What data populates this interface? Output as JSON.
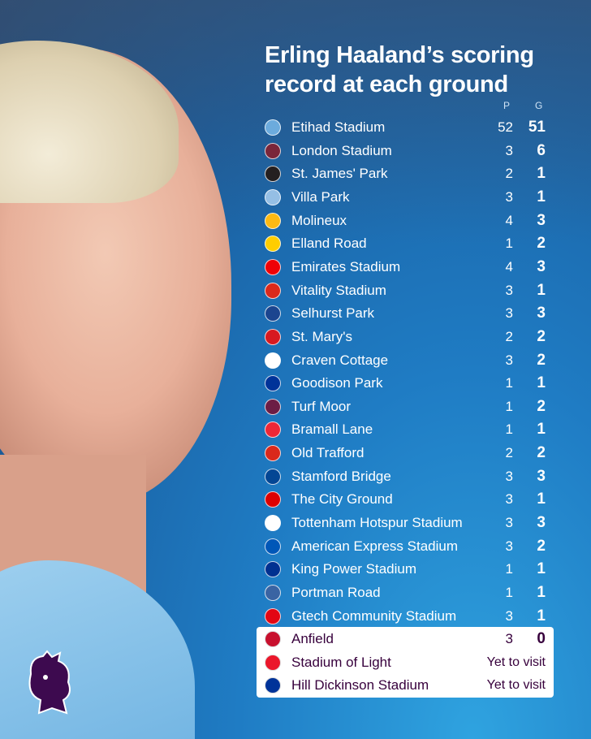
{
  "title": [
    "Erling Haaland’s scoring",
    "record at each ground"
  ],
  "columns": {
    "played": "P",
    "goals": "G"
  },
  "grounds": [
    {
      "name": "Etihad Stadium",
      "p": "52",
      "g": "51",
      "badge": "man-city-badge",
      "color": "#6cabdd"
    },
    {
      "name": "London Stadium",
      "p": "3",
      "g": "6",
      "badge": "west-ham-badge",
      "color": "#7a263a"
    },
    {
      "name": "St. James' Park",
      "p": "2",
      "g": "1",
      "badge": "newcastle-badge",
      "color": "#241f20"
    },
    {
      "name": "Villa Park",
      "p": "3",
      "g": "1",
      "badge": "aston-villa-badge",
      "color": "#95bfe5"
    },
    {
      "name": "Molineux",
      "p": "4",
      "g": "3",
      "badge": "wolves-badge",
      "color": "#fdb913"
    },
    {
      "name": "Elland Road",
      "p": "1",
      "g": "2",
      "badge": "leeds-badge",
      "color": "#ffcd00"
    },
    {
      "name": "Emirates Stadium",
      "p": "4",
      "g": "3",
      "badge": "arsenal-badge",
      "color": "#ef0107"
    },
    {
      "name": "Vitality Stadium",
      "p": "3",
      "g": "1",
      "badge": "bournemouth-badge",
      "color": "#da291c"
    },
    {
      "name": "Selhurst Park",
      "p": "3",
      "g": "3",
      "badge": "crystal-palace-badge",
      "color": "#1b458f"
    },
    {
      "name": "St. Mary's",
      "p": "2",
      "g": "2",
      "badge": "southampton-badge",
      "color": "#d71920"
    },
    {
      "name": "Craven Cottage",
      "p": "3",
      "g": "2",
      "badge": "fulham-badge",
      "color": "#ffffff"
    },
    {
      "name": "Goodison Park",
      "p": "1",
      "g": "1",
      "badge": "everton-badge",
      "color": "#003399"
    },
    {
      "name": "Turf Moor",
      "p": "1",
      "g": "2",
      "badge": "burnley-badge",
      "color": "#6c1d45"
    },
    {
      "name": "Bramall Lane",
      "p": "1",
      "g": "1",
      "badge": "sheffield-united-badge",
      "color": "#ee2737"
    },
    {
      "name": "Old Trafford",
      "p": "2",
      "g": "2",
      "badge": "man-utd-badge",
      "color": "#da291c"
    },
    {
      "name": "Stamford Bridge",
      "p": "3",
      "g": "3",
      "badge": "chelsea-badge",
      "color": "#034694"
    },
    {
      "name": "The City Ground",
      "p": "3",
      "g": "1",
      "badge": "nottingham-forest-badge",
      "color": "#dd0000"
    },
    {
      "name": "Tottenham Hotspur Stadium",
      "p": "3",
      "g": "3",
      "badge": "tottenham-badge",
      "color": "#ffffff"
    },
    {
      "name": "American Express Stadium",
      "p": "3",
      "g": "2",
      "badge": "brighton-badge",
      "color": "#0057b8"
    },
    {
      "name": "King Power Stadium",
      "p": "1",
      "g": "1",
      "badge": "leicester-badge",
      "color": "#003090"
    },
    {
      "name": "Portman Road",
      "p": "1",
      "g": "1",
      "badge": "ipswich-badge",
      "color": "#3a64a3"
    },
    {
      "name": "Gtech Community Stadium",
      "p": "3",
      "g": "1",
      "badge": "brentford-badge",
      "color": "#e30613"
    }
  ],
  "highlighted": [
    {
      "name": "Anfield",
      "p": "3",
      "g": "0",
      "badge": "liverpool-badge",
      "color": "#c8102e"
    },
    {
      "name": "Stadium of Light",
      "status": "Yet to visit",
      "badge": "sunderland-badge",
      "color": "#eb172b"
    },
    {
      "name": "Hill Dickinson Stadium",
      "status": "Yet to visit",
      "badge": "everton-badge",
      "color": "#003399"
    }
  ],
  "logo": "premier-league-lion-logo",
  "colors": {
    "text_dark": "#37003c",
    "background": "#1f7cc4"
  }
}
